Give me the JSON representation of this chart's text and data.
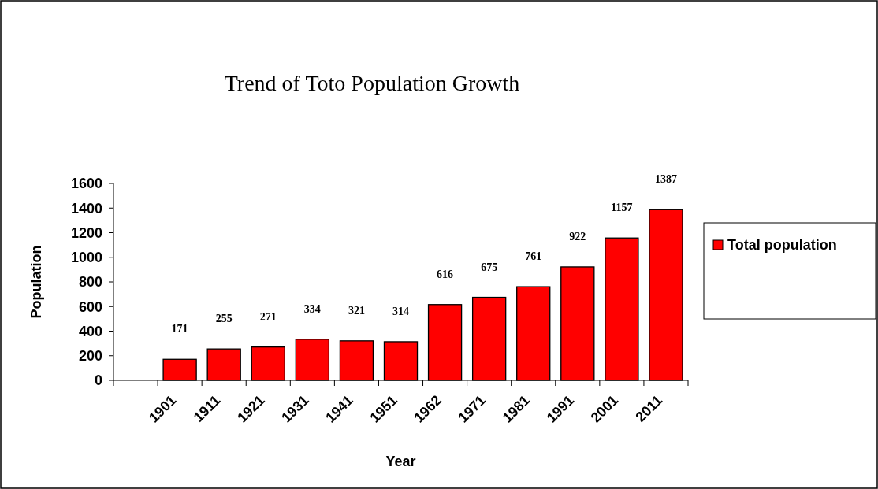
{
  "chart_data": {
    "type": "bar",
    "title": "Trend of Toto Population Growth",
    "xlabel": "Year",
    "ylabel": "Population",
    "categories": [
      null,
      "1901",
      "1911",
      "1921",
      "1931",
      "1941",
      "1951",
      "1962",
      "1971",
      "1981",
      "1991",
      "2001",
      "2011"
    ],
    "series": [
      {
        "name": "Total population",
        "color": "#ff0000",
        "values": [
          null,
          171,
          255,
          271,
          334,
          321,
          314,
          616,
          675,
          761,
          922,
          1157,
          1387
        ]
      }
    ],
    "ylim": [
      0,
      1600
    ],
    "yticks": [
      0,
      200,
      400,
      600,
      800,
      1000,
      1200,
      1400,
      1600
    ],
    "grid": false,
    "legend": "right",
    "data_labels": true
  }
}
